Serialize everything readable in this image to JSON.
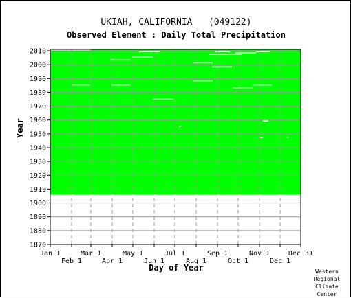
{
  "chart_data": {
    "type": "heatmap",
    "title": "UKIAH, CALIFORNIA   (049122)",
    "subtitle": "Observed Element : Daily Total Precipitation",
    "xlabel": "Day of Year",
    "ylabel": "Year",
    "ylim": [
      1870,
      2011
    ],
    "xlim": [
      "Jan 1",
      "Dec 31"
    ],
    "y_ticks": [
      1870,
      1880,
      1890,
      1900,
      1910,
      1920,
      1930,
      1940,
      1950,
      1960,
      1970,
      1980,
      1990,
      2000,
      2010
    ],
    "x_ticks_top_row": [
      "Jan 1",
      "Mar 1",
      "May 1",
      "Jul 1",
      "Sep 1",
      "Nov 1",
      "Dec 31"
    ],
    "x_ticks_bottom_row": [
      "Feb 1",
      "Apr 1",
      "Jun 1",
      "Aug 1",
      "Oct 1",
      "Dec 1"
    ],
    "grid": true,
    "data_color": "#00ff00",
    "coverage": {
      "first_year": 1906,
      "last_year": 2010,
      "first_year_start_day": 1
    },
    "missing_gaps": [
      {
        "year": 2010,
        "start_day": 1,
        "end_day": 60
      },
      {
        "year": 2009,
        "start_day": 130,
        "end_day": 160
      },
      {
        "year": 2009,
        "start_day": 240,
        "end_day": 262
      },
      {
        "year": 2009,
        "start_day": 300,
        "end_day": 320
      },
      {
        "year": 2008,
        "start_day": 270,
        "end_day": 300
      },
      {
        "year": 2007,
        "start_day": 232,
        "end_day": 280
      },
      {
        "year": 2005,
        "start_day": 120,
        "end_day": 150
      },
      {
        "year": 2003,
        "start_day": 88,
        "end_day": 118
      },
      {
        "year": 2001,
        "start_day": 208,
        "end_day": 237
      },
      {
        "year": 1998,
        "start_day": 236,
        "end_day": 265
      },
      {
        "year": 1988,
        "start_day": 208,
        "end_day": 237
      },
      {
        "year": 1985,
        "start_day": 32,
        "end_day": 59
      },
      {
        "year": 1985,
        "start_day": 90,
        "end_day": 118
      },
      {
        "year": 1985,
        "start_day": 295,
        "end_day": 323
      },
      {
        "year": 1983,
        "start_day": 266,
        "end_day": 296
      },
      {
        "year": 1975,
        "start_day": 150,
        "end_day": 180
      },
      {
        "year": 1959,
        "start_day": 310,
        "end_day": 318
      },
      {
        "year": 1955,
        "start_day": 188,
        "end_day": 191
      },
      {
        "year": 1947,
        "start_day": 306,
        "end_day": 310
      },
      {
        "year": 1947,
        "start_day": 345,
        "end_day": 348
      }
    ]
  },
  "credit": [
    "Western",
    "Regional",
    "Climate",
    "Center"
  ]
}
